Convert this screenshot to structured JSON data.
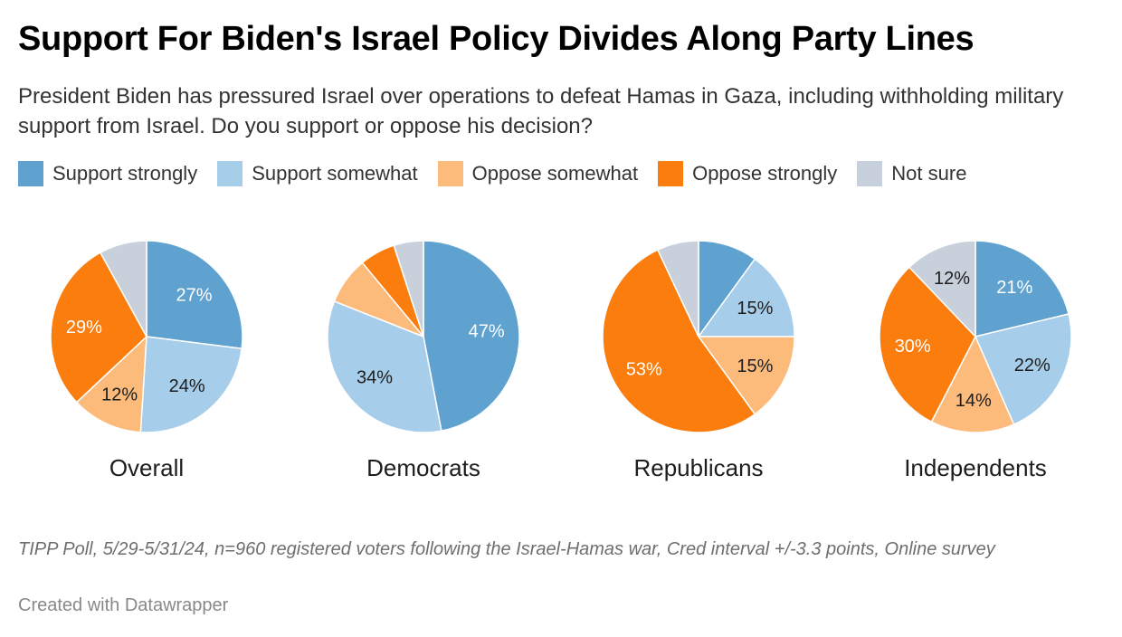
{
  "chart_data": {
    "type": "pie",
    "title": "Support For Biden's Israel Policy Divides Along Party Lines",
    "subtitle": "President Biden has pressured Israel over operations to defeat Hamas in Gaza, including withholding military support from Israel. Do you support or oppose his decision?",
    "legend": [
      {
        "name": "Support strongly",
        "color": "#5fa2d0"
      },
      {
        "name": "Support somewhat",
        "color": "#a6cdea"
      },
      {
        "name": "Oppose somewhat",
        "color": "#fdbb7b"
      },
      {
        "name": "Oppose strongly",
        "color": "#fa7d0e"
      },
      {
        "name": "Not sure",
        "color": "#c8d1db"
      }
    ],
    "groups": [
      {
        "name": "Overall",
        "values": [
          27,
          24,
          12,
          29,
          8
        ],
        "labels": [
          "27%",
          "24%",
          "12%",
          "29%",
          ""
        ]
      },
      {
        "name": "Democrats",
        "values": [
          47,
          34,
          8,
          6,
          5
        ],
        "labels": [
          "47%",
          "34%",
          "",
          "",
          ""
        ]
      },
      {
        "name": "Republicans",
        "values": [
          10,
          15,
          15,
          53,
          7
        ],
        "labels": [
          "",
          "15%",
          "15%",
          "53%",
          ""
        ]
      },
      {
        "name": "Independents",
        "values": [
          21,
          22,
          14,
          30,
          12
        ],
        "labels": [
          "21%",
          "22%",
          "14%",
          "30%",
          "12%"
        ]
      }
    ],
    "label_colors": [
      "#ffffff",
      "#1d1d1d",
      "#1d1d1d",
      "#ffffff",
      "#1d1d1d"
    ]
  },
  "notes": "TIPP Poll, 5/29-5/31/24, n=960 registered voters following the Israel-Hamas war, Cred interval +/-3.3 points, Online survey",
  "credit": "Created with Datawrapper"
}
